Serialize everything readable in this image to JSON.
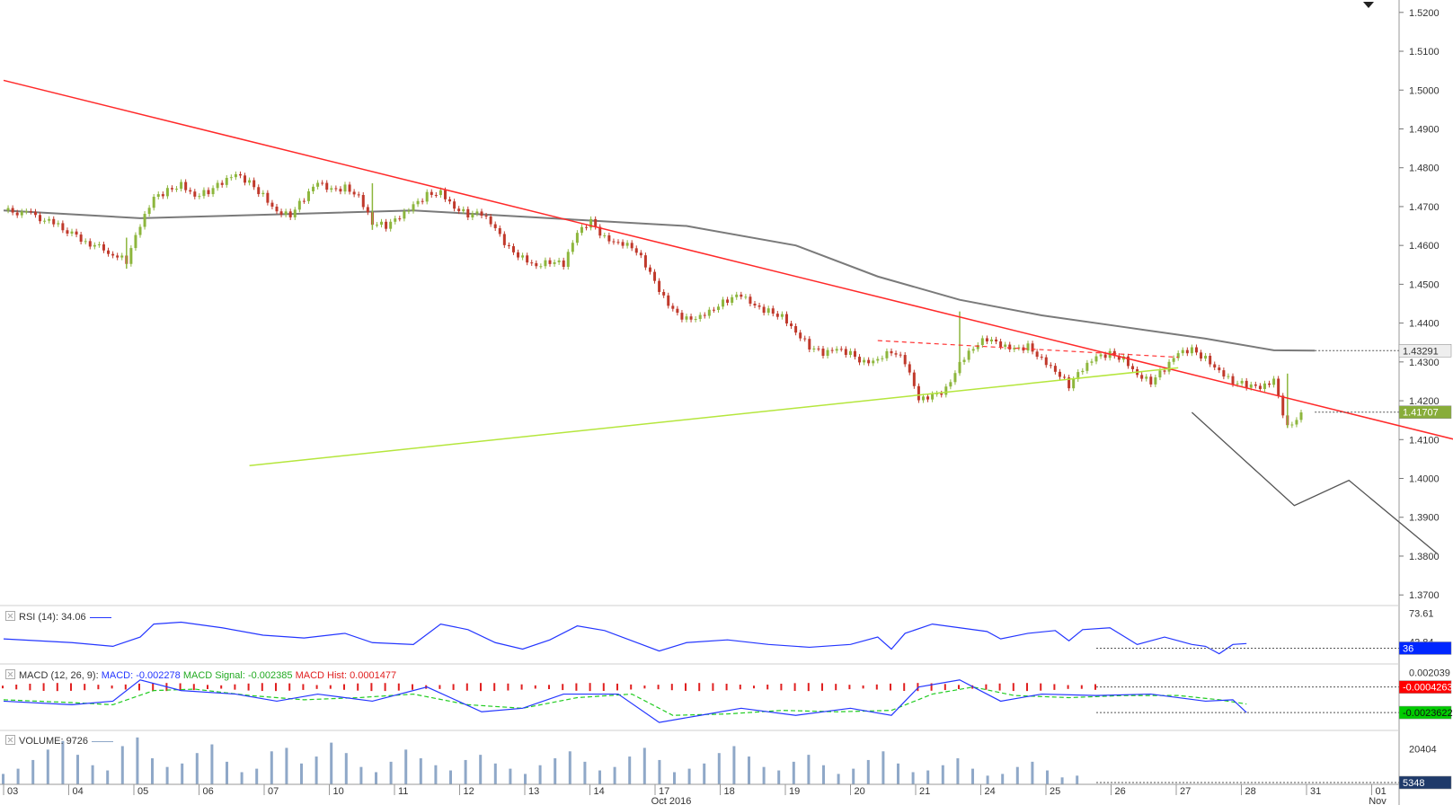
{
  "colors": {
    "up_candle": "#8db63d",
    "down_candle": "#c0392b",
    "ma": "#7a7a7a",
    "red_trend": "#ff2a2a",
    "green_trend": "#b5e63d",
    "projection": "#555555",
    "rsi": "#2436ff",
    "macd": "#2436ff",
    "macd_signal": "#22cc22",
    "macd_hist": "#e02020",
    "volume": "#8fa8c8",
    "last_price_badge": "#88ad3a",
    "ma_badge": "#eeeeee",
    "rsi_badge": "#0026ff",
    "macd_badge": "#ff0000",
    "signal_badge": "#00cc00",
    "volume_badge": "#1f3a6a"
  },
  "panes": {
    "rsi": {
      "label": "RSI (14): 34.06"
    },
    "macd": {
      "label_prefix": "MACD (12, 26, 9): ",
      "macd": "MACD: -0.002278",
      "signal": "MACD Signal: -0.002385",
      "hist": "MACD Hist: 0.0001477"
    },
    "volume": {
      "label": "VOLUME: 9726"
    }
  },
  "chart_data": {
    "type": "candlestick",
    "main": {
      "y_ticks": [
        "1.5200",
        "1.5100",
        "1.5000",
        "1.4900",
        "1.4800",
        "1.4700",
        "1.4600",
        "1.4500",
        "1.4400",
        "1.4300",
        "1.4200",
        "1.4100",
        "1.4000",
        "1.3900",
        "1.3800",
        "1.3700"
      ],
      "ylim": [
        1.3675,
        1.5225
      ],
      "x_labels": [
        "03",
        "04",
        "05",
        "06",
        "07",
        "10",
        "11",
        "12",
        "13",
        "14",
        "17",
        "18",
        "19",
        "20",
        "21",
        "24",
        "25",
        "26",
        "27",
        "28",
        "31",
        "01"
      ],
      "x_sublabels": [
        "Oct 2016",
        "Nov"
      ],
      "close_path": [
        [
          0,
          1.469
        ],
        [
          2,
          1.468
        ],
        [
          4,
          1.465
        ],
        [
          6,
          1.461
        ],
        [
          8,
          1.458
        ],
        [
          9,
          1.456
        ],
        [
          10,
          1.465
        ],
        [
          11,
          1.472
        ],
        [
          12,
          1.474
        ],
        [
          13,
          1.476
        ],
        [
          14,
          1.473
        ],
        [
          15,
          1.474
        ],
        [
          16,
          1.476
        ],
        [
          17,
          1.478
        ],
        [
          18,
          1.476
        ],
        [
          19,
          1.473
        ],
        [
          20,
          1.469
        ],
        [
          21,
          1.468
        ],
        [
          22,
          1.472
        ],
        [
          23,
          1.476
        ],
        [
          24,
          1.474
        ],
        [
          25,
          1.475
        ],
        [
          26,
          1.473
        ],
        [
          27,
          1.466
        ],
        [
          28,
          1.465
        ],
        [
          29,
          1.467
        ],
        [
          30,
          1.47
        ],
        [
          31,
          1.473
        ],
        [
          32,
          1.474
        ],
        [
          33,
          1.47
        ],
        [
          34,
          1.468
        ],
        [
          35,
          1.468
        ],
        [
          36,
          1.464
        ],
        [
          37,
          1.459
        ],
        [
          38,
          1.457
        ],
        [
          39,
          1.455
        ],
        [
          40,
          1.456
        ],
        [
          41,
          1.455
        ],
        [
          42,
          1.463
        ],
        [
          43,
          1.466
        ],
        [
          44,
          1.462
        ],
        [
          45,
          1.461
        ],
        [
          46,
          1.46
        ],
        [
          47,
          1.455
        ],
        [
          48,
          1.448
        ],
        [
          49,
          1.443
        ],
        [
          50,
          1.441
        ],
        [
          51,
          1.442
        ],
        [
          52,
          1.444
        ],
        [
          53,
          1.446
        ],
        [
          54,
          1.447
        ],
        [
          55,
          1.444
        ],
        [
          56,
          1.443
        ],
        [
          57,
          1.442
        ],
        [
          58,
          1.438
        ],
        [
          59,
          1.434
        ],
        [
          60,
          1.432
        ],
        [
          61,
          1.433
        ],
        [
          62,
          1.432
        ],
        [
          63,
          1.43
        ],
        [
          64,
          1.431
        ],
        [
          65,
          1.433
        ],
        [
          66,
          1.43
        ],
        [
          67,
          1.42
        ],
        [
          68,
          1.421
        ],
        [
          69,
          1.423
        ],
        [
          70,
          1.43
        ],
        [
          71,
          1.434
        ],
        [
          72,
          1.436
        ],
        [
          73,
          1.434
        ],
        [
          74,
          1.433
        ],
        [
          75,
          1.434
        ],
        [
          76,
          1.431
        ],
        [
          77,
          1.428
        ],
        [
          78,
          1.424
        ],
        [
          79,
          1.428
        ],
        [
          80,
          1.431
        ],
        [
          81,
          1.432
        ],
        [
          82,
          1.431
        ],
        [
          83,
          1.427
        ],
        [
          84,
          1.425
        ],
        [
          85,
          1.428
        ],
        [
          86,
          1.432
        ],
        [
          87,
          1.433
        ],
        [
          88,
          1.431
        ],
        [
          89,
          1.428
        ],
        [
          90,
          1.425
        ],
        [
          91,
          1.424
        ],
        [
          92,
          1.423
        ],
        [
          93,
          1.425
        ],
        [
          94,
          1.413
        ],
        [
          95,
          1.417
        ]
      ],
      "wicks": [
        {
          "i": 70,
          "high": 1.443,
          "low": 1.427
        },
        {
          "i": 94,
          "high": 1.427,
          "low": 1.413
        },
        {
          "i": 9,
          "high": 1.462,
          "low": 1.454
        },
        {
          "i": 27,
          "high": 1.476,
          "low": 1.464
        }
      ],
      "moving_average": [
        [
          0,
          1.469
        ],
        [
          10,
          1.467
        ],
        [
          20,
          1.468
        ],
        [
          30,
          1.469
        ],
        [
          40,
          1.467
        ],
        [
          50,
          1.465
        ],
        [
          58,
          1.46
        ],
        [
          64,
          1.452
        ],
        [
          70,
          1.446
        ],
        [
          76,
          1.442
        ],
        [
          82,
          1.439
        ],
        [
          88,
          1.436
        ],
        [
          93,
          1.433
        ],
        [
          96,
          1.4329
        ]
      ],
      "red_trendline": [
        [
          0,
          1.5025
        ],
        [
          108,
          1.4085
        ]
      ],
      "green_trendline": [
        [
          18,
          1.4033
        ],
        [
          86,
          1.4285
        ]
      ],
      "resistance_dashed": [
        [
          64,
          1.4355
        ],
        [
          86,
          1.4312
        ]
      ],
      "projection": [
        [
          87,
          1.417
        ],
        [
          94.5,
          1.393
        ],
        [
          98.5,
          1.3995
        ],
        [
          105,
          1.3805
        ]
      ],
      "last_price": "1.41707",
      "ma_value": "1.43291"
    },
    "rsi": {
      "y_ticks": [
        "73.61",
        "42.84"
      ],
      "ylim": [
        20,
        80
      ],
      "values": [
        [
          0,
          46
        ],
        [
          5,
          42
        ],
        [
          8,
          38
        ],
        [
          10,
          48
        ],
        [
          11,
          62
        ],
        [
          13,
          64
        ],
        [
          16,
          58
        ],
        [
          19,
          50
        ],
        [
          22,
          47
        ],
        [
          25,
          52
        ],
        [
          27,
          42
        ],
        [
          30,
          40
        ],
        [
          32,
          62
        ],
        [
          34,
          56
        ],
        [
          36,
          42
        ],
        [
          38,
          35
        ],
        [
          40,
          45
        ],
        [
          42,
          60
        ],
        [
          44,
          55
        ],
        [
          46,
          44
        ],
        [
          48,
          33
        ],
        [
          50,
          42
        ],
        [
          53,
          45
        ],
        [
          56,
          40
        ],
        [
          59,
          37
        ],
        [
          62,
          40
        ],
        [
          64,
          48
        ],
        [
          65,
          35
        ],
        [
          66,
          52
        ],
        [
          68,
          62
        ],
        [
          70,
          58
        ],
        [
          72,
          54
        ],
        [
          73,
          46
        ],
        [
          75,
          52
        ],
        [
          77,
          55
        ],
        [
          78,
          44
        ],
        [
          79,
          56
        ],
        [
          81,
          58
        ],
        [
          83,
          40
        ],
        [
          85,
          48
        ],
        [
          86,
          44
        ],
        [
          87,
          40
        ],
        [
          88,
          38
        ],
        [
          89,
          30
        ],
        [
          90,
          40
        ],
        [
          91,
          41
        ]
      ],
      "current": "36"
    },
    "macd": {
      "y_ticks": [
        "0.002039"
      ],
      "ylim": [
        -0.006,
        0.003
      ],
      "macd": [
        [
          0,
          -0.002
        ],
        [
          5,
          -0.0025
        ],
        [
          8,
          -0.002
        ],
        [
          10,
          0.001
        ],
        [
          13,
          -0.0005
        ],
        [
          17,
          -0.001
        ],
        [
          20,
          -0.002
        ],
        [
          23,
          -0.001
        ],
        [
          27,
          -0.002
        ],
        [
          31,
          -0.0
        ],
        [
          35,
          -0.0035
        ],
        [
          38,
          -0.003
        ],
        [
          41,
          -0.001
        ],
        [
          45,
          -0.001
        ],
        [
          48,
          -0.005
        ],
        [
          51,
          -0.004
        ],
        [
          54,
          -0.003
        ],
        [
          58,
          -0.004
        ],
        [
          62,
          -0.003
        ],
        [
          65,
          -0.004
        ],
        [
          67,
          0.0
        ],
        [
          70,
          0.001
        ],
        [
          73,
          -0.002
        ],
        [
          76,
          -0.001
        ],
        [
          80,
          -0.0012
        ],
        [
          84,
          -0.001
        ],
        [
          88,
          -0.002
        ],
        [
          90,
          -0.0018
        ],
        [
          91,
          -0.0036
        ]
      ],
      "signal": [
        [
          0,
          -0.0018
        ],
        [
          5,
          -0.0022
        ],
        [
          8,
          -0.0025
        ],
        [
          11,
          -0.0005
        ],
        [
          14,
          -0.0003
        ],
        [
          18,
          -0.0012
        ],
        [
          22,
          -0.0018
        ],
        [
          26,
          -0.0015
        ],
        [
          30,
          -0.001
        ],
        [
          34,
          -0.0025
        ],
        [
          38,
          -0.003
        ],
        [
          42,
          -0.0015
        ],
        [
          46,
          -0.001
        ],
        [
          49,
          -0.004
        ],
        [
          53,
          -0.0038
        ],
        [
          57,
          -0.0033
        ],
        [
          61,
          -0.0035
        ],
        [
          65,
          -0.0033
        ],
        [
          68,
          -0.001
        ],
        [
          71,
          0.0
        ],
        [
          74,
          -0.0012
        ],
        [
          78,
          -0.0015
        ],
        [
          82,
          -0.0012
        ],
        [
          86,
          -0.0012
        ],
        [
          89,
          -0.0018
        ],
        [
          91,
          -0.0024
        ]
      ],
      "current_hist": "-0.0004263",
      "current_signal": "-0.0023622"
    },
    "volume": {
      "y_ticks": [
        "20404"
      ],
      "ylim": [
        0,
        30000
      ],
      "levels": [
        6000,
        9000,
        14000,
        20000,
        25000,
        17000,
        11000,
        8000,
        22000,
        27000,
        15000,
        10000,
        12000,
        18000,
        23000,
        13000,
        7000,
        9000,
        19000,
        21000,
        12000,
        16000,
        24000,
        18000,
        10000,
        7000,
        13000,
        20000,
        15000,
        11000,
        8000,
        14000,
        17000,
        12000,
        9000,
        6000,
        11000,
        15000,
        19000,
        13000,
        8000,
        10000,
        16000,
        21000,
        14000,
        7000,
        9000,
        12000,
        18000,
        22000,
        16000,
        10000,
        8000,
        13000,
        17000,
        11000,
        6000,
        9000,
        14000,
        19000,
        12000,
        7000,
        8000,
        11000,
        15000,
        9000,
        5000,
        6000,
        10000,
        13000,
        8000,
        4000,
        5000
      ],
      "current": "5348"
    }
  }
}
